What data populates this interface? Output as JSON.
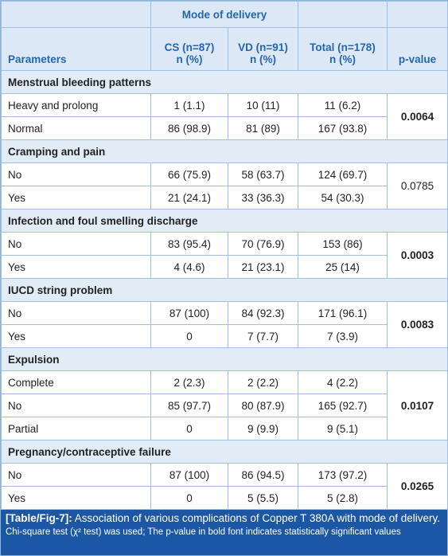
{
  "header": {
    "group": "Mode of delivery",
    "columns": [
      [
        "Parameters"
      ],
      [
        "CS (n=87)",
        "n (%)"
      ],
      [
        "VD (n=91)",
        "n (%)"
      ],
      [
        "Total (n=178)",
        "n (%)"
      ],
      [
        "p-value"
      ]
    ]
  },
  "sections": [
    {
      "title": "Menstrual bleeding patterns",
      "p_value": "0.0064",
      "significant": true,
      "rows": [
        [
          "Heavy and prolong",
          "1 (1.1)",
          "10 (11)",
          "11 (6.2)"
        ],
        [
          "Normal",
          "86 (98.9)",
          "81 (89)",
          "167 (93.8)"
        ]
      ]
    },
    {
      "title": "Cramping and pain",
      "p_value": "0.0785",
      "significant": false,
      "rows": [
        [
          "No",
          "66 (75.9)",
          "58 (63.7)",
          "124 (69.7)"
        ],
        [
          "Yes",
          "21 (24.1)",
          "33 (36.3)",
          "54 (30.3)"
        ]
      ]
    },
    {
      "title": "Infection and foul smelling discharge",
      "p_value": "0.0003",
      "significant": true,
      "rows": [
        [
          "No",
          "83 (95.4)",
          "70 (76.9)",
          "153 (86)"
        ],
        [
          "Yes",
          "4 (4.6)",
          "21 (23.1)",
          "25 (14)"
        ]
      ]
    },
    {
      "title": "IUCD string problem",
      "p_value": "0.0083",
      "significant": true,
      "rows": [
        [
          "No",
          "87 (100)",
          "84 (92.3)",
          "171 (96.1)"
        ],
        [
          "Yes",
          "0",
          "7 (7.7)",
          "7 (3.9)"
        ]
      ]
    },
    {
      "title": "Expulsion",
      "p_value": "0.0107",
      "significant": true,
      "rows": [
        [
          "Complete",
          "2 (2.3)",
          "2 (2.2)",
          "4 (2.2)"
        ],
        [
          "No",
          "85 (97.7)",
          "80 (87.9)",
          "165 (92.7)"
        ],
        [
          "Partial",
          "0",
          "9 (9.9)",
          "9 (5.1)"
        ]
      ]
    },
    {
      "title": "Pregnancy/contraceptive failure",
      "p_value": "0.0265",
      "significant": true,
      "rows": [
        [
          "No",
          "87 (100)",
          "86 (94.5)",
          "173 (97.2)"
        ],
        [
          "Yes",
          "0",
          "5 (5.5)",
          "5 (2.8)"
        ]
      ]
    }
  ],
  "caption": {
    "label": "[Table/Fig-7]:",
    "text": "Association of various complications of Copper T 380A with mode of delivery.",
    "note": "Chi-square test (χ² test) was used; The p-value in bold font indicates statistically significant values"
  }
}
